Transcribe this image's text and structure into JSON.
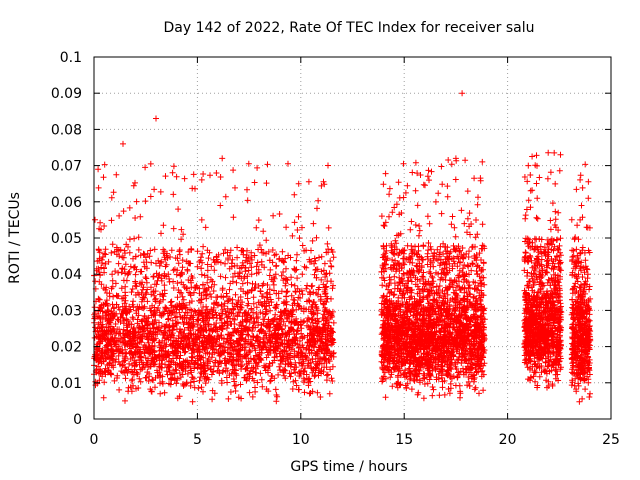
{
  "chart_data": {
    "type": "scatter",
    "title": "Day 142 of 2022, Rate Of TEC Index for receiver salu",
    "xlabel": "GPS time / hours",
    "ylabel": "ROTI / TECUs",
    "xlim": [
      0,
      25
    ],
    "ylim": [
      0,
      0.1
    ],
    "x_ticks": [
      "0",
      "5",
      "10",
      "15",
      "20",
      "25"
    ],
    "y_ticks": [
      "0",
      "0.01",
      "0.02",
      "0.03",
      "0.04",
      "0.05",
      "0.06",
      "0.07",
      "0.08",
      "0.09",
      "0.1"
    ],
    "grid": true,
    "marker": "+",
    "series_color": "#ff0000",
    "data_segments": [
      {
        "start": 0.0,
        "end": 11.6,
        "base": 0.021
      },
      {
        "start": 13.9,
        "end": 18.9,
        "base": 0.022
      },
      {
        "start": 20.8,
        "end": 22.6,
        "base": 0.024
      },
      {
        "start": 23.1,
        "end": 24.0,
        "base": 0.021
      }
    ],
    "notable_points": [
      {
        "x": 3.0,
        "y": 0.083
      },
      {
        "x": 17.8,
        "y": 0.09
      },
      {
        "x": 6.2,
        "y": 0.072
      },
      {
        "x": 1.4,
        "y": 0.076
      },
      {
        "x": 17.5,
        "y": 0.072
      },
      {
        "x": 21.0,
        "y": 0.07
      },
      {
        "x": 9.9,
        "y": 0.065
      },
      {
        "x": 0.2,
        "y": 0.069
      },
      {
        "x": 16.2,
        "y": 0.066
      },
      {
        "x": 23.9,
        "y": 0.061
      },
      {
        "x": 3.8,
        "y": 0.068
      },
      {
        "x": 1.5,
        "y": 0.005
      },
      {
        "x": 7.0,
        "y": 0.006
      },
      {
        "x": 14.1,
        "y": 0.006
      },
      {
        "x": 3.2,
        "y": 0.007
      }
    ]
  }
}
